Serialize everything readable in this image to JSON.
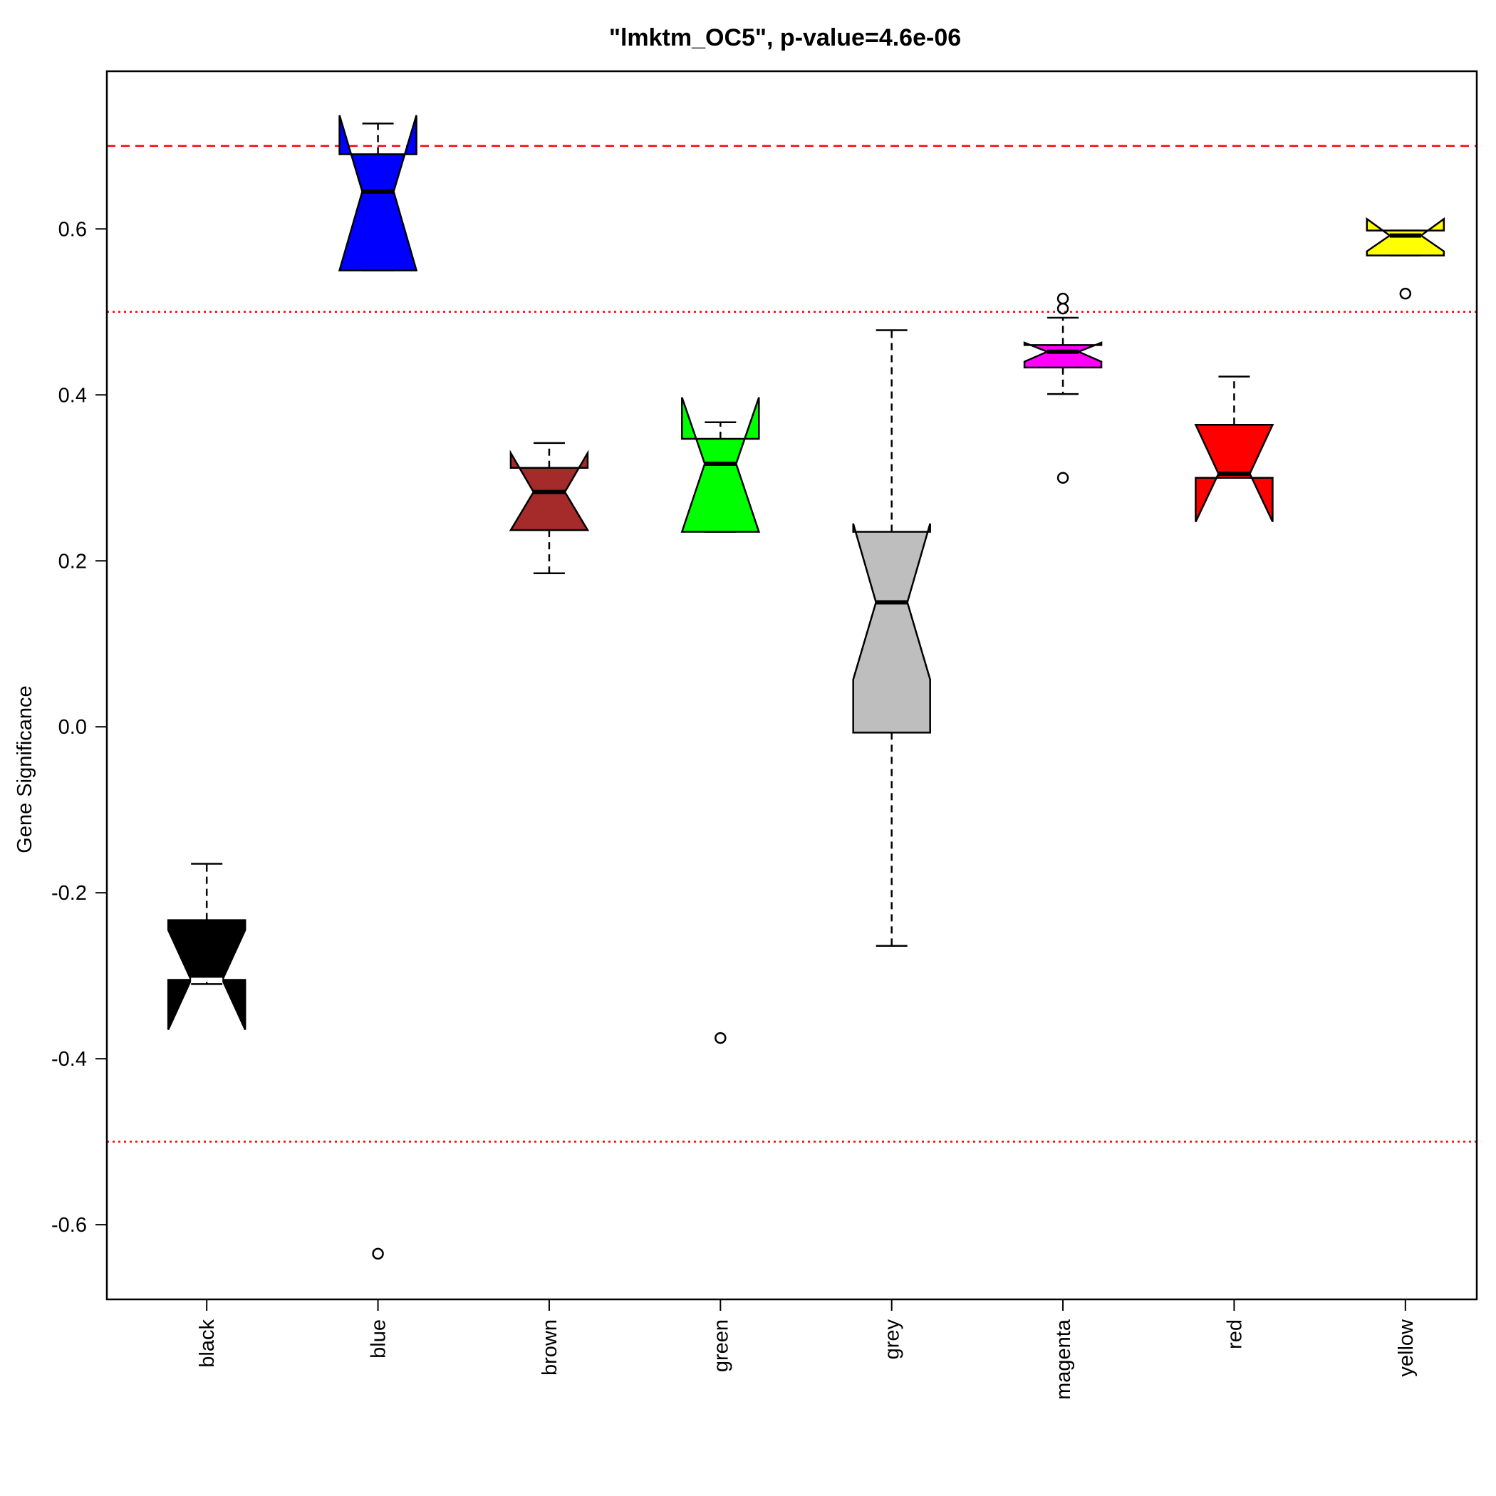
{
  "chart_data": {
    "type": "boxplot",
    "title": "\"lmktm_OC5\", p-value=4.6e-06",
    "xlabel": "",
    "ylabel": "Gene Significance",
    "ylim": [
      -0.69,
      0.79
    ],
    "yticks": [
      -0.6,
      -0.4,
      -0.2,
      0.0,
      0.2,
      0.4,
      0.6
    ],
    "ytick_labels": [
      "-0.6",
      "-0.4",
      "-0.2",
      "0.0",
      "0.2",
      "0.4",
      "0.6"
    ],
    "grid": false,
    "categories": [
      "black",
      "blue",
      "brown",
      "green",
      "grey",
      "magenta",
      "red",
      "yellow"
    ],
    "boxes": [
      {
        "name": "black",
        "color": "#000000",
        "median_color": "#ffffff",
        "whisker_low": -0.31,
        "q1": -0.305,
        "median": -0.305,
        "q3": -0.233,
        "whisker_high": -0.165,
        "notch_low": -0.365,
        "notch_high": -0.245,
        "outliers": []
      },
      {
        "name": "blue",
        "color": "#0000ff",
        "median_color": "#000000",
        "whisker_low": 0.55,
        "q1": 0.55,
        "median": 0.645,
        "q3": 0.69,
        "whisker_high": 0.727,
        "notch_low": 0.55,
        "notch_high": 0.737,
        "outliers": [
          -0.635
        ]
      },
      {
        "name": "brown",
        "color": "#a52a2a",
        "median_color": "#000000",
        "whisker_low": 0.185,
        "q1": 0.237,
        "median": 0.283,
        "q3": 0.312,
        "whisker_high": 0.342,
        "notch_low": 0.237,
        "notch_high": 0.33,
        "outliers": []
      },
      {
        "name": "green",
        "color": "#00ff00",
        "median_color": "#000000",
        "whisker_low": 0.235,
        "q1": 0.235,
        "median": 0.317,
        "q3": 0.347,
        "whisker_high": 0.367,
        "notch_low": 0.235,
        "notch_high": 0.397,
        "outliers": [
          -0.375
        ]
      },
      {
        "name": "grey",
        "color": "#bebebe",
        "median_color": "#000000",
        "whisker_low": -0.264,
        "q1": -0.007,
        "median": 0.15,
        "q3": 0.235,
        "whisker_high": 0.478,
        "notch_low": 0.057,
        "notch_high": 0.245,
        "outliers": []
      },
      {
        "name": "magenta",
        "color": "#ff00ff",
        "median_color": "#000000",
        "whisker_low": 0.401,
        "q1": 0.433,
        "median": 0.452,
        "q3": 0.46,
        "whisker_high": 0.493,
        "notch_low": 0.44,
        "notch_high": 0.463,
        "outliers": [
          0.3,
          0.504,
          0.516
        ]
      },
      {
        "name": "red",
        "color": "#ff0000",
        "median_color": "#000000",
        "whisker_low": 0.3,
        "q1": 0.3,
        "median": 0.305,
        "q3": 0.364,
        "whisker_high": 0.422,
        "notch_low": 0.247,
        "notch_high": 0.364,
        "outliers": []
      },
      {
        "name": "yellow",
        "color": "#ffff00",
        "median_color": "#000000",
        "whisker_low": 0.568,
        "q1": 0.568,
        "median": 0.592,
        "q3": 0.598,
        "whisker_high": 0.598,
        "notch_low": 0.573,
        "notch_high": 0.612,
        "outliers": [
          0.522
        ]
      }
    ],
    "reference_lines": [
      {
        "value": 0.7,
        "style": "dashed",
        "color": "#ff0000"
      },
      {
        "value": 0.5,
        "style": "dotted",
        "color": "#ff0000"
      },
      {
        "value": -0.5,
        "style": "dotted",
        "color": "#ff0000"
      }
    ]
  }
}
